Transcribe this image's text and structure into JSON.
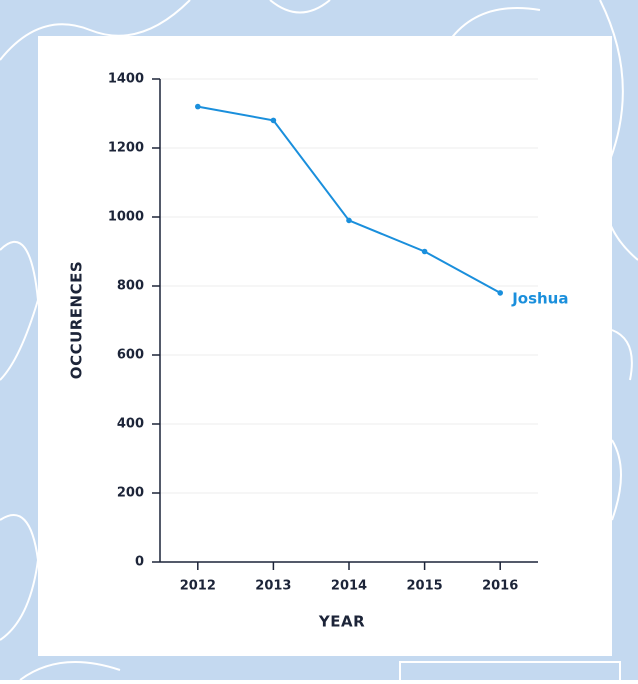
{
  "chart_data": {
    "type": "line",
    "x_label": "YEAR",
    "y_label": "OCCURENCES",
    "categories": [
      "2012",
      "2013",
      "2014",
      "2015",
      "2016"
    ],
    "series": [
      {
        "name": "Joshua",
        "color": "#1a8fdc",
        "values": [
          1320,
          1280,
          990,
          900,
          780
        ]
      }
    ],
    "ylim": [
      0,
      1400
    ],
    "yticks": [
      0,
      200,
      400,
      600,
      800,
      1000,
      1200,
      1400
    ],
    "grid": true
  }
}
